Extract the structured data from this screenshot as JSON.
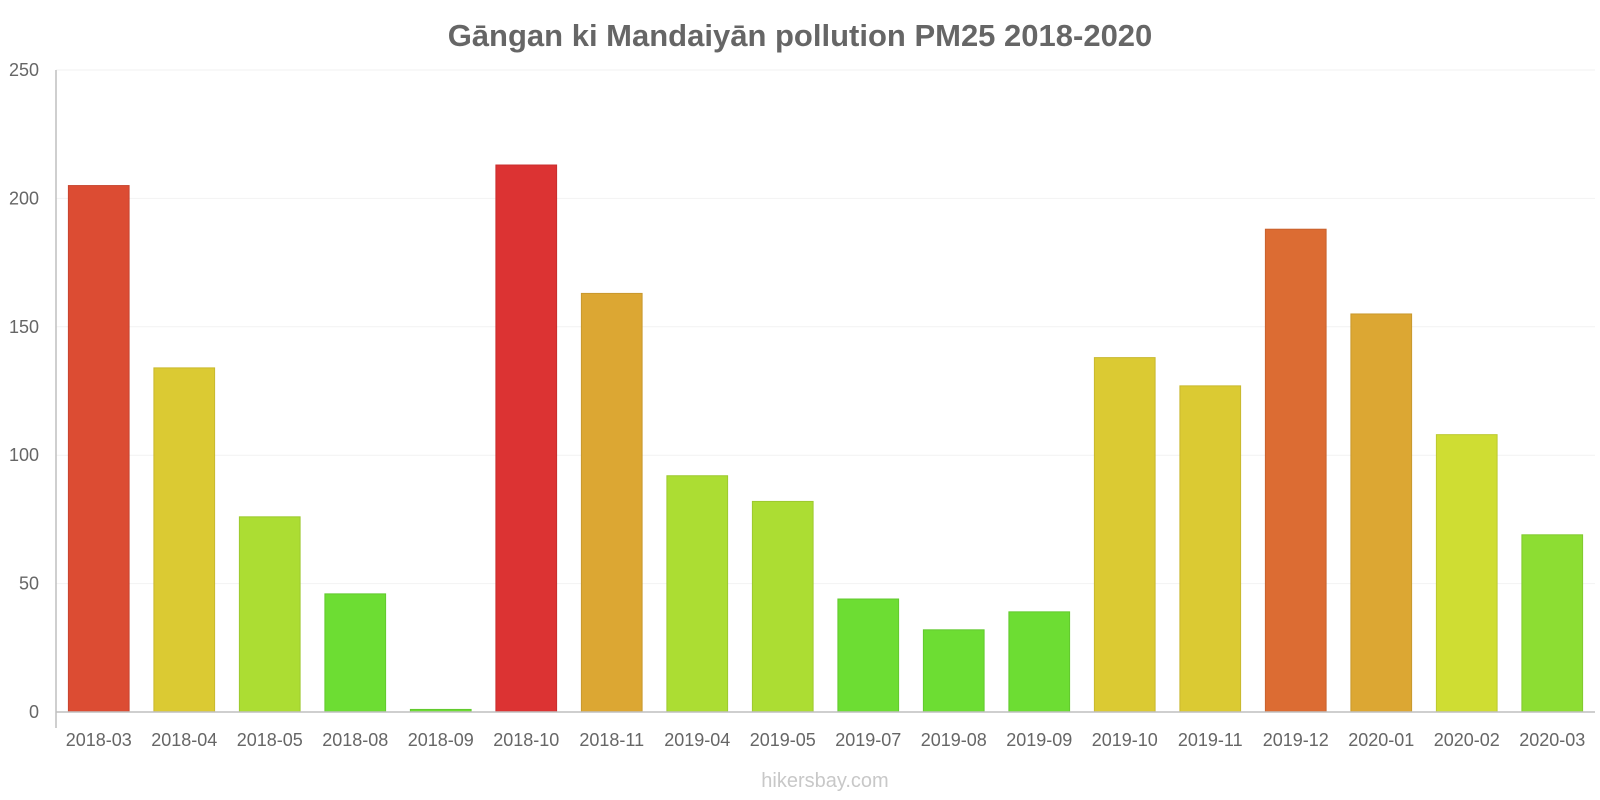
{
  "chart_data": {
    "type": "bar",
    "title": "Gāngan ki Mandaiyān pollution PM25 2018-2020",
    "xlabel": "",
    "ylabel": "",
    "ylim": [
      0,
      250
    ],
    "yticks": [
      "0",
      "50",
      "100",
      "150",
      "200",
      "250"
    ],
    "ytick_values": [
      0,
      50,
      100,
      150,
      200,
      250
    ],
    "grid": true,
    "legend": "none",
    "categories": [
      "2018-03",
      "2018-04",
      "2018-05",
      "2018-08",
      "2018-09",
      "2018-10",
      "2018-11",
      "2019-04",
      "2019-05",
      "2019-07",
      "2019-08",
      "2019-09",
      "2019-10",
      "2019-11",
      "2019-12",
      "2020-01",
      "2020-02",
      "2020-03"
    ],
    "values": [
      205,
      134,
      76,
      46,
      1,
      213,
      163,
      92,
      82,
      44,
      32,
      39,
      138,
      127,
      188,
      155,
      108,
      69
    ],
    "colors": [
      "#dc4c33",
      "#dbca33",
      "#acdd33",
      "#6ddd33",
      "#6ddd33",
      "#dc3333",
      "#dca733",
      "#acdd33",
      "#acdd33",
      "#6ddd33",
      "#6ddd33",
      "#6ddd33",
      "#dbca33",
      "#dbca33",
      "#dc6c33",
      "#dca733",
      "#cfdd33",
      "#8ddd33"
    ],
    "border_colors": [
      "#c84530",
      "#c8b82e",
      "#9cc92e",
      "#62c92e",
      "#62c92e",
      "#c82e2e",
      "#c8982e",
      "#9cc92e",
      "#9cc92e",
      "#62c92e",
      "#62c92e",
      "#62c92e",
      "#c8b82e",
      "#c8b82e",
      "#c8622e",
      "#c8982e",
      "#bcc92e",
      "#80c92e"
    ]
  },
  "watermark": "hikersbay.com",
  "colors": {
    "title": "#666666",
    "tick_label": "#666666",
    "axis": "#bfbfbf",
    "grid": "#f2f2f2",
    "watermark": "#c8c8c8"
  }
}
